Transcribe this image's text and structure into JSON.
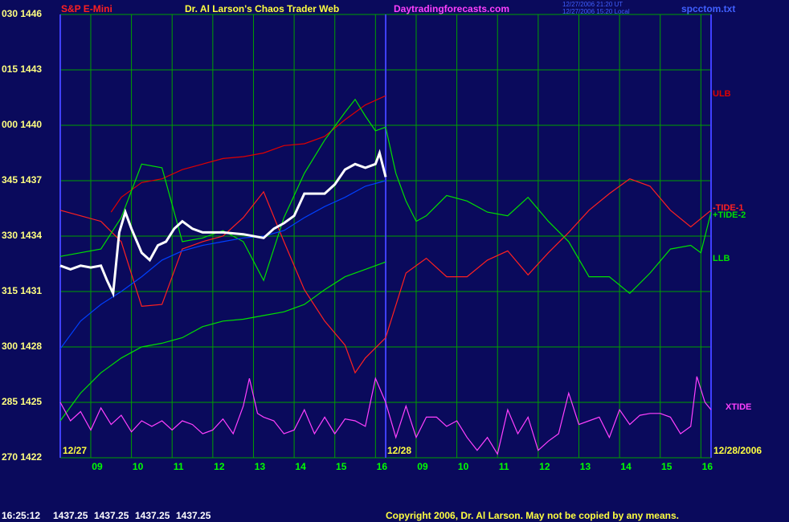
{
  "chart_data": {
    "type": "line",
    "symbol": "S&P E-Mini",
    "title": "Dr. Al Larson's Chaos Trader Web",
    "site": "Daytradingforecasts.com",
    "timestamps": [
      "12/27/2006 21:20 UT",
      "12/27/2006 15:20 Local"
    ],
    "file": "spcctom.txt",
    "date_labels": [
      "12/27",
      "12/28",
      "12/28/2006"
    ],
    "session_break": 8,
    "xlim": [
      0,
      16
    ],
    "ylim": [
      1422,
      1446
    ],
    "grid": true,
    "xticks": [
      {
        "value": 0.75,
        "label": "09"
      },
      {
        "value": 1.75,
        "label": "10"
      },
      {
        "value": 2.75,
        "label": "11"
      },
      {
        "value": 3.75,
        "label": "12"
      },
      {
        "value": 4.75,
        "label": "13"
      },
      {
        "value": 5.75,
        "label": "14"
      },
      {
        "value": 6.75,
        "label": "15"
      },
      {
        "value": 7.75,
        "label": "16"
      },
      {
        "value": 8.75,
        "label": "09"
      },
      {
        "value": 9.75,
        "label": "10"
      },
      {
        "value": 10.75,
        "label": "11"
      },
      {
        "value": 11.75,
        "label": "12"
      },
      {
        "value": 12.75,
        "label": "13"
      },
      {
        "value": 13.75,
        "label": "14"
      },
      {
        "value": 14.75,
        "label": "15"
      },
      {
        "value": 15.75,
        "label": "16"
      }
    ],
    "yticks": [
      {
        "value": 1446,
        "label": "030 1446"
      },
      {
        "value": 1443,
        "label": "015 1443"
      },
      {
        "value": 1440,
        "label": "000 1440"
      },
      {
        "value": 1437,
        "label": "345 1437"
      },
      {
        "value": 1434,
        "label": "330 1434"
      },
      {
        "value": 1431,
        "label": "315 1431"
      },
      {
        "value": 1428,
        "label": "300 1428"
      },
      {
        "value": 1425,
        "label": "285 1425"
      },
      {
        "value": 1422,
        "label": "270 1422"
      }
    ],
    "series": [
      {
        "name": "ULB",
        "color": "#e00000",
        "x": [
          1.25,
          1.5,
          2,
          2.5,
          3,
          3.5,
          4,
          4.5,
          5,
          5.5,
          6,
          6.5,
          7,
          7.5,
          8
        ],
        "values": [
          1435.3,
          1436.1,
          1436.9,
          1437.1,
          1437.6,
          1437.9,
          1438.2,
          1438.3,
          1438.5,
          1438.9,
          1439.0,
          1439.4,
          1440.3,
          1441.1,
          1441.6
        ]
      },
      {
        "name": "-TIDE-1",
        "color": "#ff2020",
        "x": [
          0,
          0.5,
          1,
          1.5,
          2,
          2.5,
          3,
          3.5,
          4,
          4.5,
          5,
          5.5,
          6,
          6.5,
          7,
          7.25,
          7.5,
          8,
          8.5,
          9,
          9.5,
          10,
          10.5,
          11,
          11.5,
          12,
          12.5,
          13,
          13.5,
          14,
          14.5,
          15,
          15.5,
          16
        ],
        "values": [
          1435.4,
          1435.1,
          1434.8,
          1433.7,
          1430.2,
          1430.3,
          1433.3,
          1433.7,
          1434.0,
          1435.0,
          1436.4,
          1433.7,
          1431.1,
          1429.4,
          1428.1,
          1426.6,
          1427.4,
          1428.5,
          1432.0,
          1432.8,
          1431.8,
          1431.8,
          1432.7,
          1433.2,
          1431.9,
          1433.1,
          1434.2,
          1435.4,
          1436.3,
          1437.1,
          1436.7,
          1435.4,
          1434.5,
          1435.4
        ]
      },
      {
        "name": "+TIDE-2",
        "color": "#00e000",
        "x": [
          0,
          0.5,
          1,
          1.5,
          2,
          2.5,
          3,
          3.5,
          4,
          4.5,
          5,
          5.5,
          6,
          6.5,
          7,
          7.25,
          7.5,
          7.75,
          8,
          8.25,
          8.5,
          8.75,
          9,
          9.5,
          10,
          10.5,
          11,
          11.5,
          12,
          12.5,
          13,
          13.5,
          14,
          14.5,
          15,
          15.5,
          15.75,
          16
        ],
        "values": [
          1432.9,
          1433.1,
          1433.3,
          1435.0,
          1437.9,
          1437.7,
          1433.7,
          1433.9,
          1434.3,
          1433.7,
          1431.6,
          1435.0,
          1437.4,
          1439.2,
          1440.7,
          1441.4,
          1440.5,
          1439.7,
          1439.9,
          1437.4,
          1435.9,
          1434.8,
          1435.1,
          1436.2,
          1435.9,
          1435.3,
          1435.1,
          1436.1,
          1434.8,
          1433.7,
          1431.8,
          1431.8,
          1430.9,
          1432.0,
          1433.3,
          1433.5,
          1433.1,
          1435.3
        ]
      },
      {
        "name": "LLB",
        "color": "#00e000",
        "x": [
          0,
          0.5,
          1,
          1.5,
          2,
          2.5,
          3,
          3.5,
          4,
          4.5,
          5,
          5.5,
          6,
          6.5,
          7,
          7.5,
          8
        ],
        "values": [
          1424.0,
          1425.5,
          1426.6,
          1427.4,
          1428.0,
          1428.2,
          1428.5,
          1429.1,
          1429.4,
          1429.5,
          1429.7,
          1429.9,
          1430.3,
          1431.1,
          1431.8,
          1432.2,
          1432.6
        ]
      },
      {
        "name": "XTIDE",
        "color": "#ff40ff",
        "x": [
          0,
          0.25,
          0.5,
          0.75,
          1,
          1.25,
          1.5,
          1.75,
          2,
          2.25,
          2.5,
          2.75,
          3,
          3.25,
          3.5,
          3.75,
          4,
          4.25,
          4.5,
          4.65,
          4.85,
          5,
          5.25,
          5.5,
          5.75,
          6,
          6.25,
          6.5,
          6.75,
          7,
          7.25,
          7.5,
          7.75,
          8,
          8.25,
          8.5,
          8.75,
          9,
          9.25,
          9.5,
          9.75,
          10,
          10.25,
          10.5,
          10.75,
          11,
          11.25,
          11.5,
          11.75,
          12,
          12.25,
          12.5,
          12.75,
          13,
          13.25,
          13.5,
          13.75,
          14,
          14.25,
          14.5,
          14.75,
          15,
          15.25,
          15.5,
          15.65,
          15.85,
          16
        ],
        "values": [
          1425.0,
          1424.0,
          1424.5,
          1423.5,
          1424.7,
          1423.8,
          1424.3,
          1423.4,
          1424.0,
          1423.7,
          1424.0,
          1423.5,
          1424.0,
          1423.8,
          1423.3,
          1423.5,
          1424.1,
          1423.3,
          1424.8,
          1426.3,
          1424.4,
          1424.2,
          1424.0,
          1423.3,
          1423.5,
          1424.6,
          1423.3,
          1424.2,
          1423.3,
          1424.1,
          1424.0,
          1423.7,
          1426.3,
          1425.0,
          1423.1,
          1424.8,
          1423.1,
          1424.2,
          1424.2,
          1423.7,
          1424.0,
          1423.1,
          1422.4,
          1423.1,
          1422.2,
          1424.6,
          1423.3,
          1424.2,
          1422.4,
          1422.9,
          1423.3,
          1425.5,
          1423.8,
          1424.0,
          1424.2,
          1423.1,
          1424.6,
          1423.8,
          1424.3,
          1424.4,
          1424.4,
          1424.2,
          1423.3,
          1423.7,
          1426.4,
          1425.0,
          1424.6
        ]
      },
      {
        "color": "#0040ff",
        "x": [
          0,
          0.5,
          1,
          1.5,
          2,
          2.5,
          3,
          3.5,
          4,
          4.5,
          5,
          5.5,
          6,
          6.5,
          7,
          7.5,
          8
        ],
        "values": [
          1427.9,
          1429.4,
          1430.3,
          1431.0,
          1431.8,
          1432.7,
          1433.2,
          1433.5,
          1433.7,
          1433.9,
          1434.0,
          1434.3,
          1435.0,
          1435.6,
          1436.1,
          1436.7,
          1437.0
        ]
      },
      {
        "color": "#ffffff",
        "x": [
          0,
          0.25,
          0.5,
          0.75,
          1,
          1.15,
          1.3,
          1.45,
          1.6,
          1.75,
          2,
          2.2,
          2.4,
          2.6,
          2.8,
          3,
          3.25,
          3.5,
          4,
          4.5,
          5,
          5.25,
          5.5,
          5.75,
          6,
          6.25,
          6.5,
          6.75,
          7,
          7.25,
          7.5,
          7.75,
          7.85,
          8
        ],
        "values": [
          1432.4,
          1432.2,
          1432.4,
          1432.3,
          1432.4,
          1431.6,
          1430.9,
          1434.2,
          1435.3,
          1434.4,
          1433.1,
          1432.7,
          1433.5,
          1433.7,
          1434.4,
          1434.8,
          1434.4,
          1434.2,
          1434.2,
          1434.1,
          1433.9,
          1434.4,
          1434.7,
          1435.1,
          1436.3,
          1436.3,
          1436.3,
          1436.8,
          1437.6,
          1437.9,
          1437.7,
          1437.9,
          1438.5,
          1437.2
        ]
      }
    ],
    "status": {
      "time": "16:25:12",
      "quotes": [
        1437.25,
        1437.25,
        1437.25,
        1437.25
      ]
    },
    "copyright": "Copyright 2006, Dr. Al Larson. May not be copied by any means."
  }
}
